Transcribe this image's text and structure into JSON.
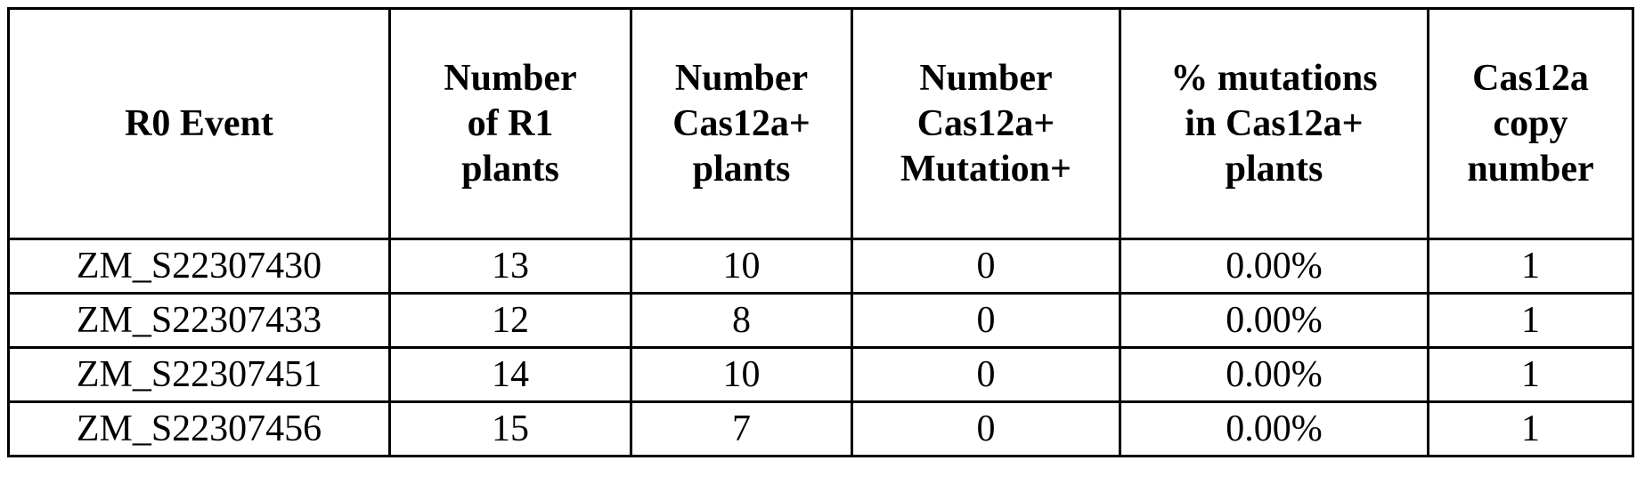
{
  "table": {
    "headers": [
      [
        "R0 Event"
      ],
      [
        "Number",
        "of R1",
        "plants"
      ],
      [
        "Number",
        "Cas12a+",
        "plants"
      ],
      [
        "Number",
        "Cas12a+",
        "Mutation+"
      ],
      [
        "% mutations",
        "in Cas12a+",
        "plants"
      ],
      [
        "Cas12a",
        "copy",
        "number"
      ]
    ],
    "rows": [
      [
        "ZM_S22307430",
        "13",
        "10",
        "0",
        "0.00%",
        "1"
      ],
      [
        "ZM_S22307433",
        "12",
        "8",
        "0",
        "0.00%",
        "1"
      ],
      [
        "ZM_S22307451",
        "14",
        "10",
        "0",
        "0.00%",
        "1"
      ],
      [
        "ZM_S22307456",
        "15",
        "7",
        "0",
        "0.00%",
        "1"
      ]
    ]
  }
}
